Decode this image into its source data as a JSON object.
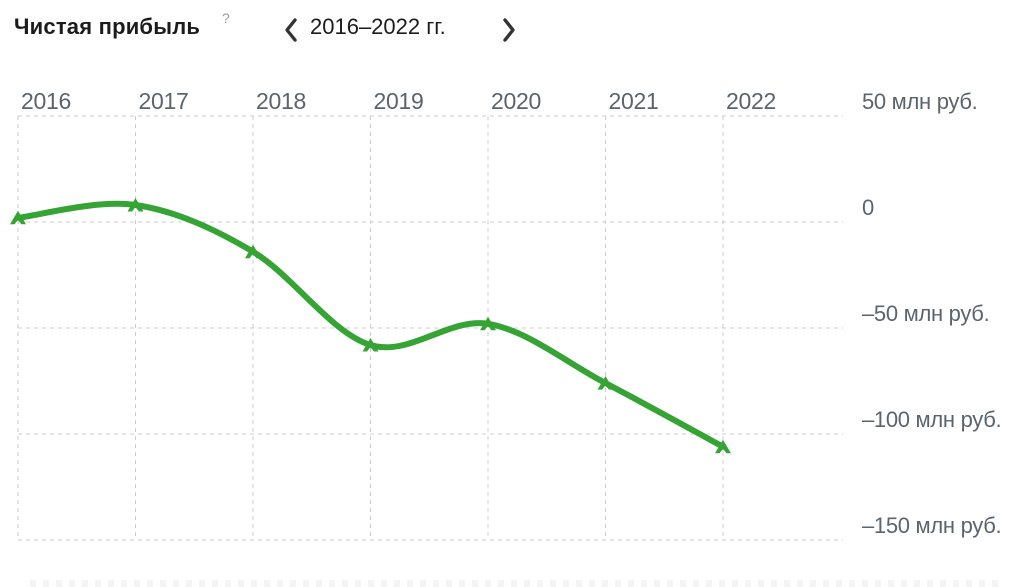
{
  "header": {
    "title": "Чистая прибыль",
    "help_label": "?",
    "nav": {
      "prev_icon": "chevron-left",
      "range_label": "2016–2022 гг.",
      "next_icon": "chevron-right"
    }
  },
  "chart_data": {
    "type": "line",
    "title": "Чистая прибыль",
    "unit": "млн руб.",
    "categories": [
      "2016",
      "2017",
      "2018",
      "2019",
      "2020",
      "2021",
      "2022"
    ],
    "series": [
      {
        "name": "Чистая прибыль",
        "values": [
          2,
          8,
          -14,
          -58,
          -48,
          -76,
          -106
        ]
      }
    ],
    "y_ticks": [
      {
        "value": 50,
        "label": "50 млн руб."
      },
      {
        "value": 0,
        "label": "0"
      },
      {
        "value": -50,
        "label": "–50 млн руб."
      },
      {
        "value": -100,
        "label": "–100 млн руб."
      },
      {
        "value": -150,
        "label": "–150 млн руб."
      }
    ],
    "ylim": [
      -150,
      50
    ],
    "grid": true,
    "grid_style": "dashed",
    "legend": "none",
    "x_axis_position": "top",
    "y_axis_position": "right",
    "marker": "caret-up",
    "colors": {
      "line": "#35a435",
      "grid": "#cccccc",
      "axis_labels": "#5b646e",
      "title": "#1c1c1c",
      "help": "#9b9b9b",
      "chevron": "#343434"
    }
  }
}
